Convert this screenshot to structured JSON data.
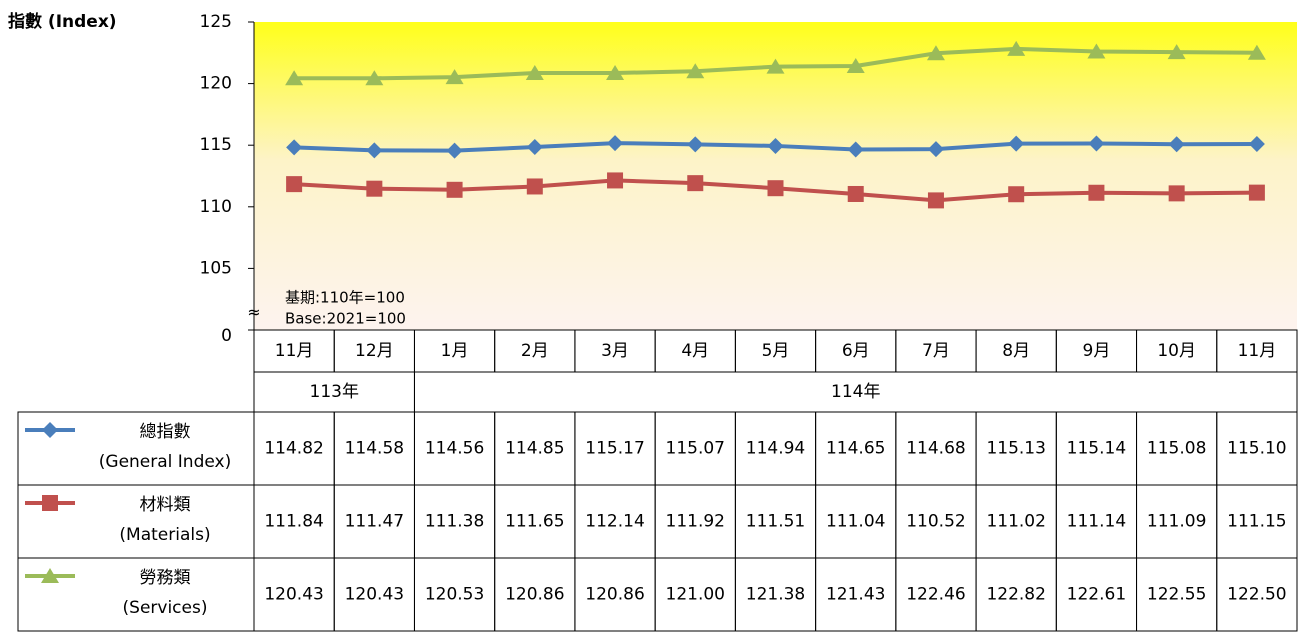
{
  "chart_data": {
    "type": "line",
    "y_label": "指數 (Index)",
    "annotations": [
      "基期:110年=100",
      "Base:2021=100"
    ],
    "categories": [
      "11月",
      "12月",
      "1月",
      "2月",
      "3月",
      "4月",
      "5月",
      "6月",
      "7月",
      "8月",
      "9月",
      "10月",
      "11月"
    ],
    "year_groups": [
      {
        "label": "113年",
        "span": 2
      },
      {
        "label": "114年",
        "span": 11
      }
    ],
    "ylim": [
      100,
      125
    ],
    "yticks": [
      0,
      105,
      110,
      115,
      120,
      125
    ],
    "axis_break": true,
    "series": [
      {
        "name": "總指數",
        "name_en": "(General Index)",
        "color": "#4a7ebb",
        "marker": "diamond",
        "values": [
          114.82,
          114.58,
          114.56,
          114.85,
          115.17,
          115.07,
          114.94,
          114.65,
          114.68,
          115.13,
          115.14,
          115.08,
          115.1
        ],
        "value_labels": [
          "114.82",
          "114.58",
          "114.56",
          "114.85",
          "115.17",
          "115.07",
          "114.94",
          "114.65",
          "114.68",
          "115.13",
          "115.14",
          "115.08",
          "115.10"
        ]
      },
      {
        "name": "材料類",
        "name_en": "(Materials)",
        "color": "#c0504d",
        "marker": "square",
        "values": [
          111.84,
          111.47,
          111.38,
          111.65,
          112.14,
          111.92,
          111.51,
          111.04,
          110.52,
          111.02,
          111.14,
          111.09,
          111.15
        ],
        "value_labels": [
          "111.84",
          "111.47",
          "111.38",
          "111.65",
          "112.14",
          "111.92",
          "111.51",
          "111.04",
          "110.52",
          "111.02",
          "111.14",
          "111.09",
          "111.15"
        ]
      },
      {
        "name": "勞務類",
        "name_en": "(Services)",
        "color": "#9bbb59",
        "marker": "triangle",
        "values": [
          120.43,
          120.43,
          120.53,
          120.86,
          120.86,
          121.0,
          121.38,
          121.43,
          122.46,
          122.82,
          122.61,
          122.55,
          122.5
        ],
        "value_labels": [
          "120.43",
          "120.43",
          "120.53",
          "120.86",
          "120.86",
          "121.00",
          "121.38",
          "121.43",
          "122.46",
          "122.82",
          "122.61",
          "122.55",
          "122.50"
        ]
      }
    ]
  }
}
